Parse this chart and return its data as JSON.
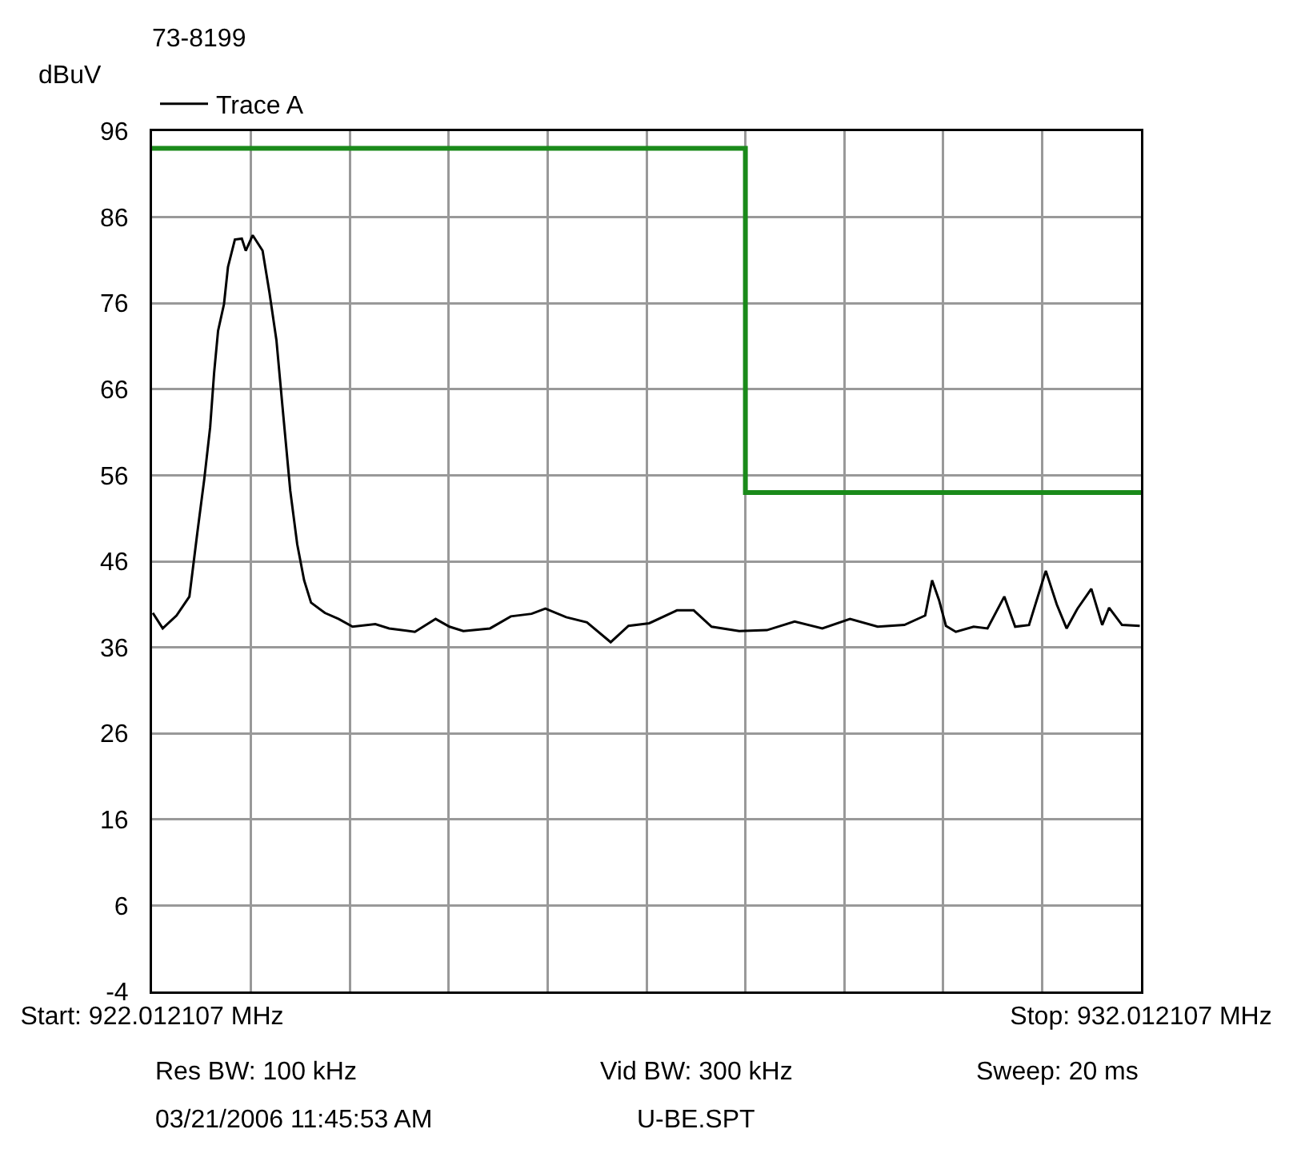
{
  "chart_data": {
    "type": "line",
    "title": "73-8199",
    "ylabel": "dBuV",
    "legend": "top left",
    "grid": true,
    "marker": "none",
    "line_style": "solid",
    "xlim": [
      922.012107,
      932.012107
    ],
    "xticks": [
      {
        "value": 922.012107,
        "label": "Start: 922.012107 MHz"
      },
      {
        "value": 923.012107,
        "label": null
      },
      {
        "value": 924.012107,
        "label": null
      },
      {
        "value": 925.012107,
        "label": null
      },
      {
        "value": 926.012107,
        "label": null
      },
      {
        "value": 927.012107,
        "label": null
      },
      {
        "value": 928.012107,
        "label": null
      },
      {
        "value": 929.012107,
        "label": null
      },
      {
        "value": 930.012107,
        "label": null
      },
      {
        "value": 931.012107,
        "label": null
      },
      {
        "value": 932.012107,
        "label": "Stop: 932.012107 MHz"
      }
    ],
    "ylim": [
      -4,
      96
    ],
    "yticks": [
      -4,
      6,
      16,
      26,
      36,
      46,
      56,
      66,
      76,
      86,
      96
    ],
    "series": [
      {
        "name": "Trace A",
        "color": "#000000",
        "x": [
          922.02,
          922.12,
          922.26,
          922.39,
          922.43,
          922.47,
          922.54,
          922.6,
          922.64,
          922.68,
          922.74,
          922.78,
          922.85,
          922.92,
          922.96,
          923.03,
          923.13,
          923.2,
          923.27,
          923.34,
          923.41,
          923.48,
          923.55,
          923.62,
          923.76,
          923.9,
          924.04,
          924.27,
          924.41,
          924.67,
          924.88,
          925.02,
          925.16,
          925.43,
          925.64,
          925.85,
          925.99,
          926.2,
          926.41,
          926.65,
          926.83,
          927.04,
          927.32,
          927.49,
          927.67,
          927.95,
          928.23,
          928.51,
          928.79,
          929.07,
          929.35,
          929.62,
          929.83,
          929.9,
          929.97,
          930.04,
          930.14,
          930.32,
          930.46,
          930.63,
          930.74,
          930.88,
          931.05,
          931.16,
          931.26,
          931.37,
          931.51,
          931.62,
          931.69,
          931.82,
          932.0
        ],
        "values": [
          40.0,
          38.2,
          39.7,
          41.9,
          45.6,
          49.3,
          55.5,
          61.6,
          67.9,
          72.8,
          75.9,
          80.2,
          83.4,
          83.5,
          82.1,
          83.9,
          82.1,
          77.2,
          71.7,
          62.9,
          54.2,
          48.0,
          43.8,
          41.2,
          40.0,
          39.3,
          38.4,
          38.7,
          38.2,
          37.8,
          39.3,
          38.4,
          37.9,
          38.2,
          39.6,
          39.9,
          40.5,
          39.5,
          38.9,
          36.6,
          38.5,
          38.8,
          40.3,
          40.3,
          38.4,
          37.9,
          38.0,
          39.0,
          38.2,
          39.3,
          38.4,
          38.6,
          39.7,
          43.8,
          41.5,
          38.5,
          37.8,
          38.4,
          38.2,
          41.9,
          38.4,
          38.6,
          44.9,
          41.0,
          38.2,
          40.5,
          42.8,
          38.6,
          40.6,
          38.6,
          38.5
        ]
      },
      {
        "type": "line",
        "color": "#1a8a1a",
        "x": [
          922.012107,
          928.012107,
          928.012107,
          932.012107
        ],
        "values": [
          94,
          94,
          54,
          54
        ]
      }
    ],
    "annotations": [
      "Res BW: 100 kHz",
      "Vid BW: 300 kHz",
      "Sweep: 20 ms",
      "03/21/2006 11:45:53 AM",
      "U-BE.SPT"
    ]
  }
}
